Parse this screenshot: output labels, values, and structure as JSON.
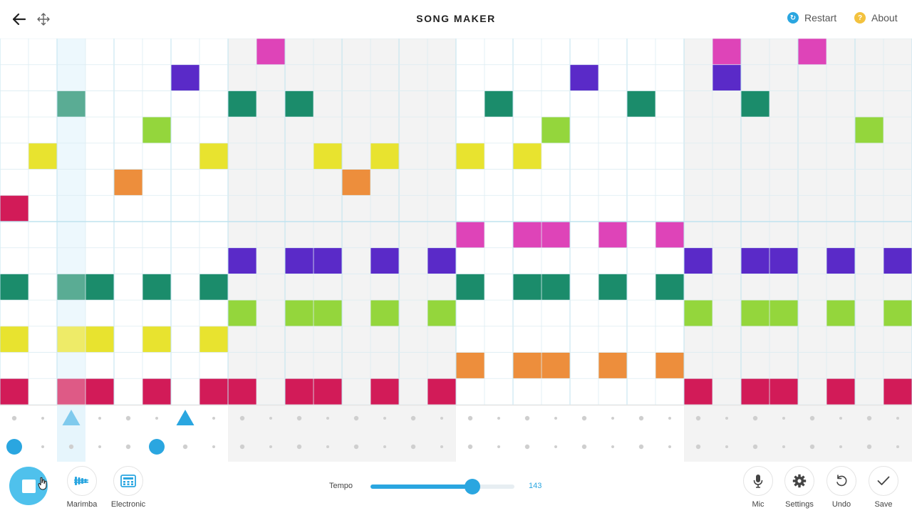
{
  "header": {
    "title": "SONG MAKER",
    "back_icon": "arrow-left-icon",
    "move_icon": "move-arrows-icon",
    "restart_label": "Restart",
    "about_label": "About",
    "restart_color": "#2aa6e0",
    "about_color": "#f3c23e"
  },
  "grid": {
    "columns": 32,
    "rows": 14,
    "measure_length": 8,
    "playhead_column": 2,
    "colors": [
      "#d21b58",
      "#ed8e3c",
      "#e8e32f",
      "#94d63c",
      "#1b8c6b",
      "#5a2ac8",
      "#de44b8"
    ],
    "row_color_index": [
      6,
      5,
      4,
      3,
      2,
      1,
      0,
      6,
      5,
      4,
      3,
      2,
      1,
      0
    ],
    "notes": [
      [
        0,
        9
      ],
      [
        0,
        25
      ],
      [
        0,
        28
      ],
      [
        1,
        6
      ],
      [
        1,
        20
      ],
      [
        1,
        25
      ],
      [
        2,
        2
      ],
      [
        2,
        8
      ],
      [
        2,
        10
      ],
      [
        2,
        17
      ],
      [
        2,
        22
      ],
      [
        2,
        26
      ],
      [
        3,
        5
      ],
      [
        3,
        19
      ],
      [
        3,
        30
      ],
      [
        4,
        1
      ],
      [
        4,
        7
      ],
      [
        4,
        11
      ],
      [
        4,
        13
      ],
      [
        4,
        16
      ],
      [
        4,
        18
      ],
      [
        5,
        4
      ],
      [
        5,
        12
      ],
      [
        6,
        0
      ],
      [
        7,
        16
      ],
      [
        7,
        18
      ],
      [
        7,
        19
      ],
      [
        7,
        21
      ],
      [
        7,
        23
      ],
      [
        8,
        8
      ],
      [
        8,
        10
      ],
      [
        8,
        11
      ],
      [
        8,
        13
      ],
      [
        8,
        15
      ],
      [
        8,
        24
      ],
      [
        8,
        26
      ],
      [
        8,
        27
      ],
      [
        8,
        29
      ],
      [
        8,
        31
      ],
      [
        9,
        0
      ],
      [
        9,
        2
      ],
      [
        9,
        3
      ],
      [
        9,
        5
      ],
      [
        9,
        7
      ],
      [
        9,
        16
      ],
      [
        9,
        18
      ],
      [
        9,
        19
      ],
      [
        9,
        21
      ],
      [
        9,
        23
      ],
      [
        10,
        8
      ],
      [
        10,
        10
      ],
      [
        10,
        11
      ],
      [
        10,
        13
      ],
      [
        10,
        15
      ],
      [
        10,
        24
      ],
      [
        10,
        26
      ],
      [
        10,
        27
      ],
      [
        10,
        29
      ],
      [
        10,
        31
      ],
      [
        11,
        0
      ],
      [
        11,
        2
      ],
      [
        11,
        3
      ],
      [
        11,
        5
      ],
      [
        11,
        7
      ],
      [
        12,
        16
      ],
      [
        12,
        18
      ],
      [
        12,
        19
      ],
      [
        12,
        21
      ],
      [
        12,
        23
      ],
      [
        13,
        0
      ],
      [
        13,
        2
      ],
      [
        13,
        3
      ],
      [
        13,
        5
      ],
      [
        13,
        7
      ],
      [
        13,
        8
      ],
      [
        13,
        10
      ],
      [
        13,
        11
      ],
      [
        13,
        13
      ],
      [
        13,
        15
      ],
      [
        13,
        24
      ],
      [
        13,
        26
      ],
      [
        13,
        27
      ],
      [
        13,
        29
      ],
      [
        13,
        31
      ]
    ]
  },
  "percussion": {
    "color": "#2aa6e0",
    "triangles": [
      2,
      6
    ],
    "circles": [
      0,
      5
    ]
  },
  "controls": {
    "play_icon": "stop-icon",
    "instrument_label": "Marimba",
    "instrument_icon": "marimba-icon",
    "percussion_label": "Electronic",
    "percussion_icon": "drum-machine-icon",
    "tempo_label": "Tempo",
    "tempo_value": "143",
    "tempo_fraction": 0.71,
    "mic_label": "Mic",
    "settings_label": "Settings",
    "undo_label": "Undo",
    "save_label": "Save"
  }
}
